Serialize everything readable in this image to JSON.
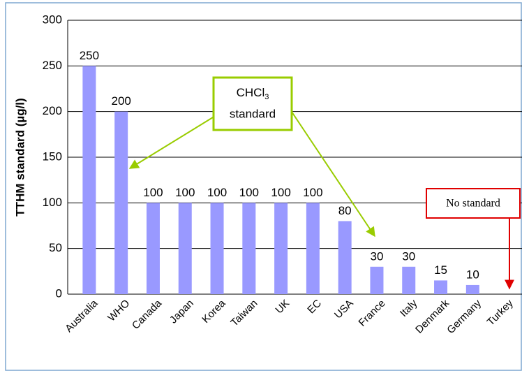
{
  "chart_data": {
    "type": "bar",
    "y_label": "TTHM standard (µg/l)",
    "categories": [
      "Australia",
      "WHO",
      "Canada",
      "Japan",
      "Korea",
      "Taiwan",
      "UK",
      "EC",
      "USA",
      "France",
      "Italy",
      "Denmark",
      "Germany",
      "Turkey"
    ],
    "values": [
      250,
      200,
      100,
      100,
      100,
      100,
      100,
      100,
      80,
      30,
      30,
      15,
      10,
      null
    ],
    "color": "#9999ff",
    "ylim": [
      0,
      300
    ],
    "yticks": [
      0,
      50,
      100,
      150,
      200,
      250,
      300
    ],
    "grid": true,
    "annotations": {
      "chcl3": {
        "formula": "CHCl",
        "subscript": "3",
        "line2": "standard"
      },
      "none": "No standard"
    }
  }
}
